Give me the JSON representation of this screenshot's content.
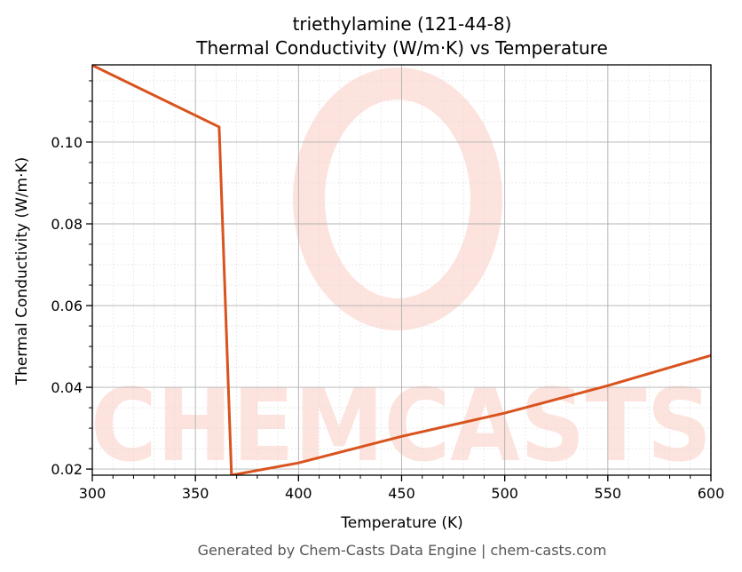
{
  "title_line1": "triethylamine (121-44-8)",
  "title_line2": "Thermal Conductivity (W/m·K) vs Temperature",
  "xlabel": "Temperature (K)",
  "ylabel": "Thermal Conductivity (W/m·K)",
  "footer": "Generated by Chem-Casts Data Engine | chem-casts.com",
  "watermark": "CHEMCASTS",
  "colors": {
    "line": "#d9531e",
    "watermark": "#fde3de",
    "major_grid": "#b0b0b0",
    "minor_grid": "#dddddd",
    "axis": "#000000",
    "footer": "#555555"
  },
  "chart_data": {
    "type": "line",
    "title": "triethylamine (121-44-8) Thermal Conductivity (W/m·K) vs Temperature",
    "xlabel": "Temperature (K)",
    "ylabel": "Thermal Conductivity (W/m·K)",
    "xlim": [
      300,
      600
    ],
    "ylim": [
      0.0185,
      0.1189
    ],
    "x_ticks": [
      300,
      350,
      400,
      450,
      500,
      550,
      600
    ],
    "y_ticks": [
      0.02,
      0.04,
      0.06,
      0.08,
      0.1
    ],
    "x_tick_labels": [
      "300",
      "350",
      "400",
      "450",
      "500",
      "550",
      "600"
    ],
    "y_tick_labels": [
      "0.02",
      "0.04",
      "0.06",
      "0.08",
      "0.10"
    ],
    "grid": true,
    "legend": null,
    "series": [
      {
        "name": "Thermal Conductivity",
        "x": [
          300,
          361.5,
          367.5,
          400,
          450,
          500,
          550,
          600
        ],
        "y": [
          0.1188,
          0.1037,
          0.0185,
          0.0215,
          0.028,
          0.0337,
          0.0404,
          0.0478
        ]
      }
    ]
  }
}
